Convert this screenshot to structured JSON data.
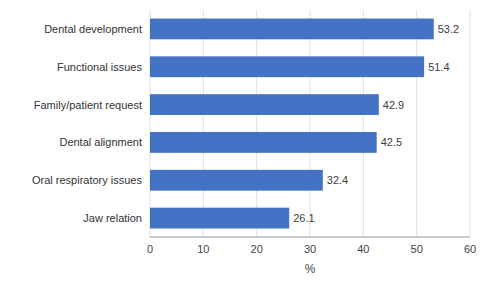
{
  "chart_data": {
    "type": "bar",
    "orientation": "horizontal",
    "categories": [
      "Jaw relation",
      "Oral respiratory issues",
      "Dental alignment",
      "Family/patient request",
      "Functional issues",
      "Dental development"
    ],
    "values": [
      26.1,
      32.4,
      42.5,
      42.9,
      51.4,
      53.2
    ],
    "color": "#4472C4",
    "x_label": "%",
    "xlim": [
      0,
      60
    ],
    "xticks": [
      0,
      10,
      20,
      30,
      40,
      50,
      60
    ],
    "grid": true,
    "data_labels": true
  }
}
